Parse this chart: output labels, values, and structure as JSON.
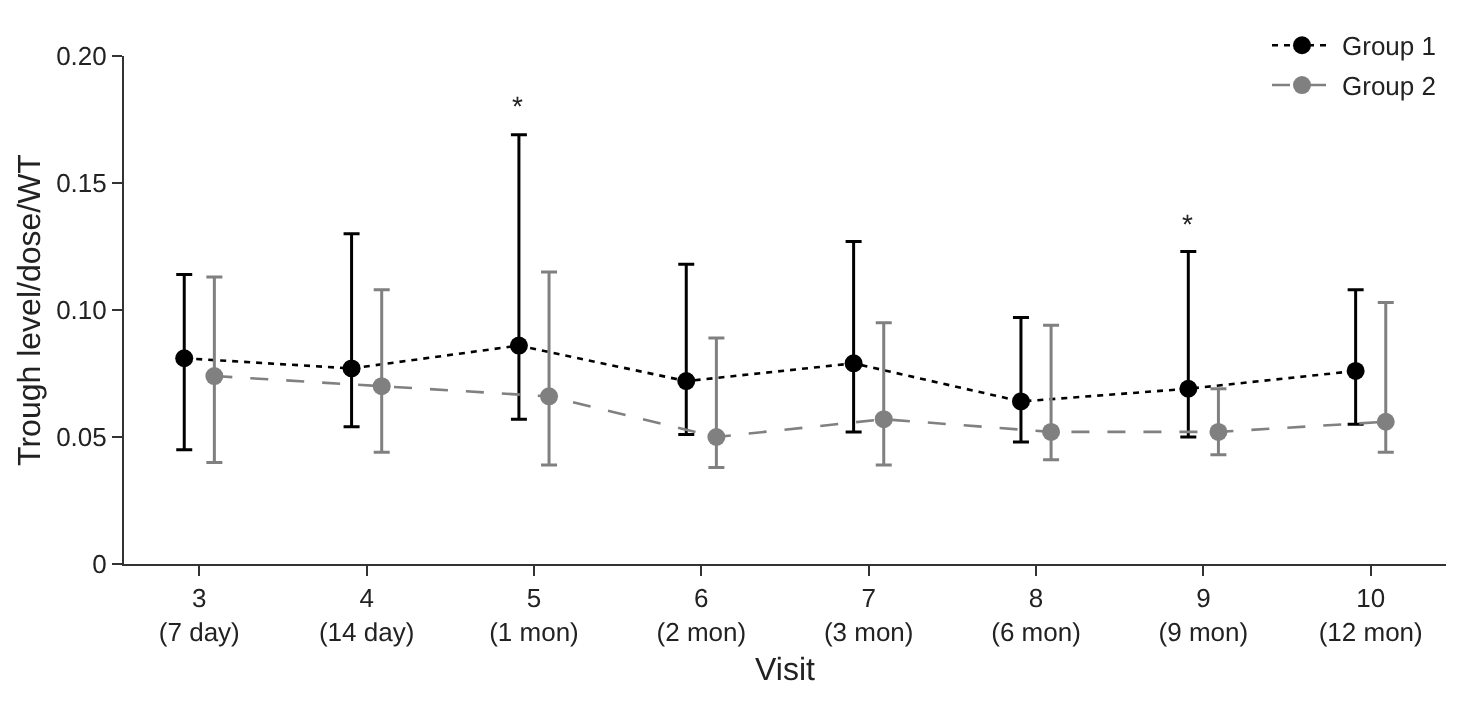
{
  "chart_data": {
    "type": "line",
    "xlabel": "Visit",
    "ylabel": "Trough level/dose/WT",
    "categories": [
      "3\n(7 day)",
      "4\n(14 day)",
      "5\n(1 mon)",
      "6\n(2 mon)",
      "7\n(3 mon)",
      "8\n(6 mon)",
      "9\n(9 mon)",
      "10\n(12 mon)"
    ],
    "series": [
      {
        "name": "Group 1",
        "color": "#000000",
        "line_style": "dotted",
        "values": [
          0.081,
          0.077,
          0.086,
          0.072,
          0.079,
          0.064,
          0.069,
          0.076
        ],
        "errors": [
          [
            0.045,
            0.114
          ],
          [
            0.054,
            0.13
          ],
          [
            0.057,
            0.169
          ],
          [
            0.051,
            0.118
          ],
          [
            0.052,
            0.127
          ],
          [
            0.048,
            0.097
          ],
          [
            0.05,
            0.123
          ],
          [
            0.055,
            0.108
          ]
        ]
      },
      {
        "name": "Group 2",
        "color": "#808080",
        "line_style": "dashed",
        "values": [
          0.074,
          0.07,
          0.066,
          0.05,
          0.057,
          0.052,
          0.052,
          0.056
        ],
        "errors": [
          [
            0.04,
            0.113
          ],
          [
            0.044,
            0.108
          ],
          [
            0.039,
            0.115
          ],
          [
            0.038,
            0.089
          ],
          [
            0.039,
            0.095
          ],
          [
            0.041,
            0.094
          ],
          [
            0.043,
            0.069
          ],
          [
            0.044,
            0.103
          ]
        ]
      }
    ],
    "ylim": [
      0,
      0.2
    ],
    "yticks": [
      0,
      0.05,
      {
        "value": 0.1,
        "label": "0.10"
      },
      0.15,
      {
        "value": 0.2,
        "label": "0.20"
      }
    ],
    "marker": "circle",
    "grid": false,
    "legend": "top right",
    "annotations": [
      {
        "text": "*",
        "x": "5\n(1 mon)",
        "y": 0.169
      },
      {
        "text": "*",
        "x": "9\n(9 mon)",
        "y": 0.123
      }
    ]
  }
}
